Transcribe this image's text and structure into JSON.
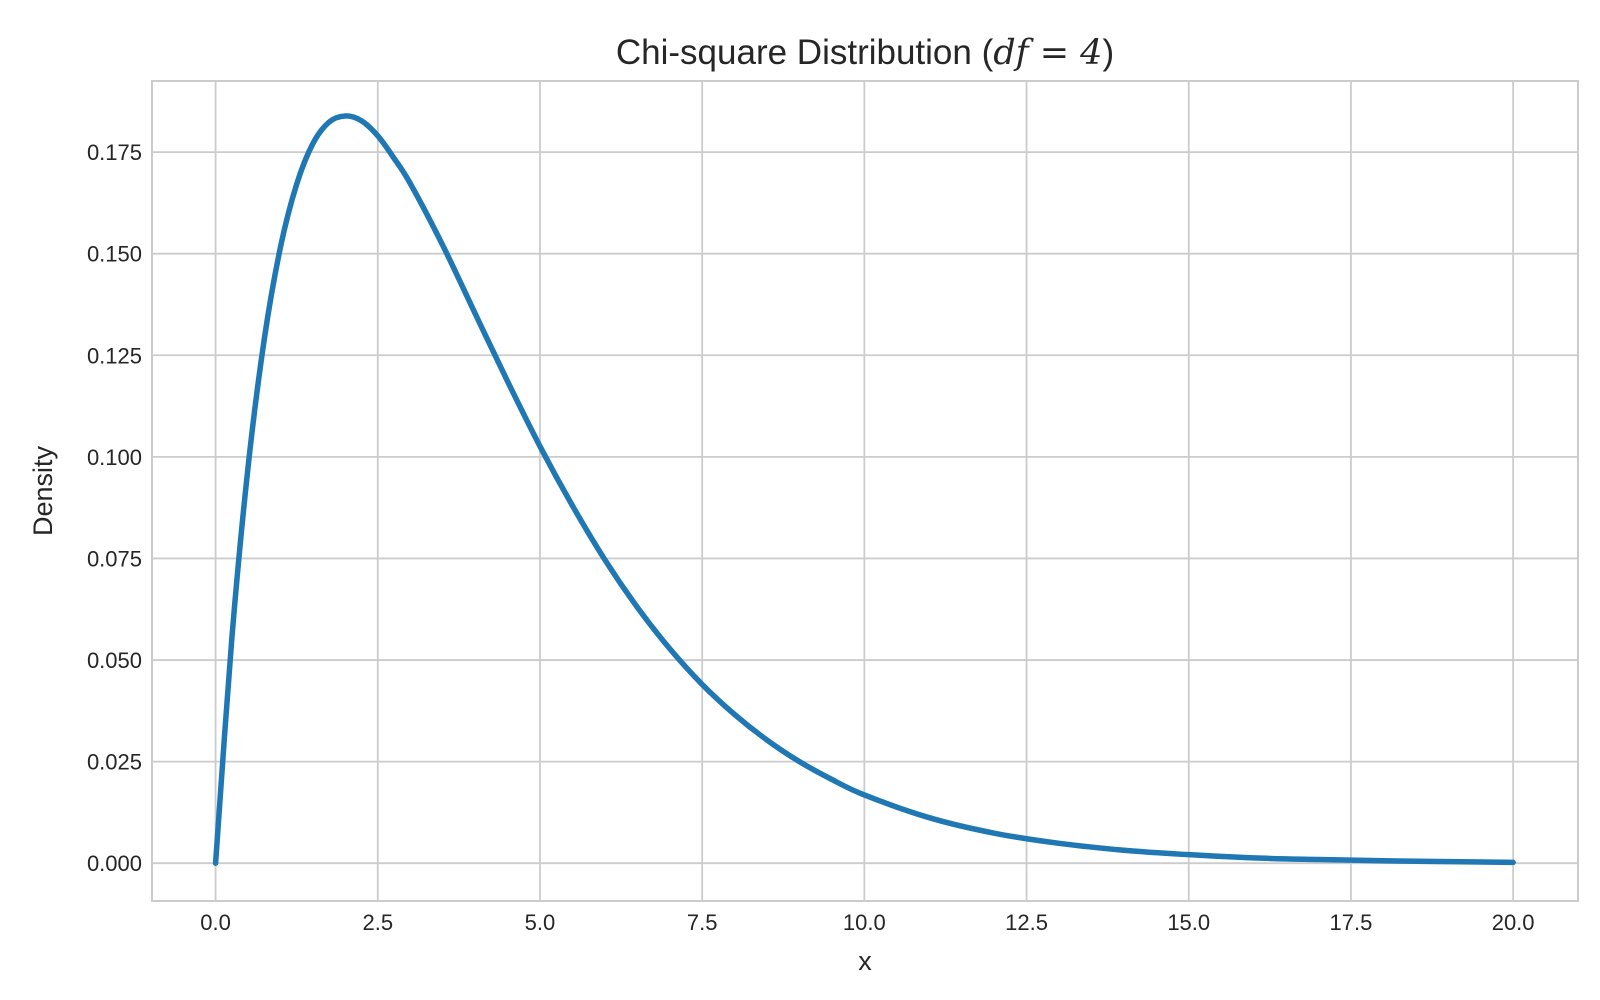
{
  "chart_data": {
    "type": "line",
    "title": {
      "prefix": "Chi-square Distribution (",
      "math": "df = 4",
      "suffix": ")"
    },
    "xlabel": "x",
    "ylabel": "Density",
    "xlim": [
      -0.98,
      21.0
    ],
    "ylim": [
      -0.0093,
      0.1925
    ],
    "xticks": [
      "0.0",
      "2.5",
      "5.0",
      "7.5",
      "10.0",
      "12.5",
      "15.0",
      "17.5",
      "20.0"
    ],
    "yticks": [
      "0.000",
      "0.025",
      "0.050",
      "0.075",
      "0.100",
      "0.125",
      "0.150",
      "0.175"
    ],
    "grid": true,
    "legend": "none",
    "series": [
      {
        "color": "#1f77b4",
        "x": [
          0.0,
          0.25,
          0.5,
          0.75,
          1.0,
          1.25,
          1.5,
          1.75,
          2.0,
          2.25,
          2.5,
          2.75,
          3.0,
          3.5,
          4.0,
          4.5,
          5.0,
          5.5,
          6.0,
          6.5,
          7.0,
          7.5,
          8.0,
          8.5,
          9.0,
          9.5,
          10.0,
          11.0,
          12.0,
          13.0,
          14.0,
          15.0,
          16.0,
          17.0,
          18.0,
          19.0,
          20.0
        ],
        "y": [
          0.0,
          0.0552,
          0.0974,
          0.1289,
          0.1516,
          0.1671,
          0.1771,
          0.1824,
          0.1839,
          0.1827,
          0.179,
          0.1735,
          0.1673,
          0.1521,
          0.1353,
          0.1186,
          0.1026,
          0.088,
          0.0747,
          0.063,
          0.0528,
          0.044,
          0.0366,
          0.0303,
          0.025,
          0.0206,
          0.0168,
          0.0112,
          0.0074,
          0.0049,
          0.0032,
          0.0021,
          0.0013,
          0.0009,
          0.0006,
          0.0004,
          0.0002
        ]
      }
    ]
  }
}
